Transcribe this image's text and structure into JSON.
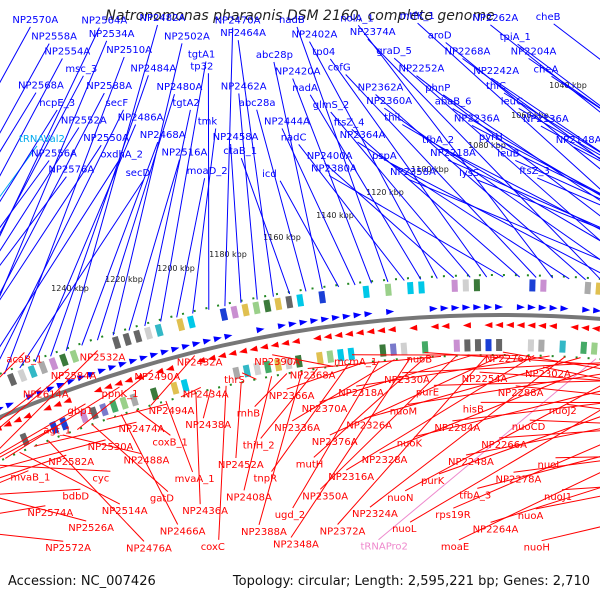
{
  "title": "Natronomonas pharaonis DSM 2160, complete genome",
  "footer": {
    "accession": "Accession: NC_007426",
    "summary": "Topology: circular; Length: 2,595,221 bp; Genes: 2,710"
  },
  "colors": {
    "plus_strand": "#0000ff",
    "minus_strand": "#ff0000",
    "trna": "#00aaee",
    "trna_minus": "#ee88cc",
    "backbone": "#777777",
    "tick_mark": "#228822"
  },
  "ticks": [
    "1040 kbp",
    "1060 kbp",
    "1080 kbp",
    "1100 kbp",
    "1120 kbp",
    "1140 kbp",
    "1160 kbp",
    "1180 kbp",
    "1200 kbp",
    "1220 kbp",
    "1240 kbp"
  ],
  "genes_plus": [
    "NP2570A",
    "tRNAVal2",
    "NP2568A",
    "NP2558A",
    "NP2556A",
    "hcpE_3",
    "NP2554A",
    "NP2576A",
    "NP2552A",
    "msc_3",
    "NP2564A",
    "NP2550A",
    "NP2588A",
    "NP2534A",
    "oxdhA_2",
    "secF",
    "NP2510A",
    "secD",
    "NP2486A",
    "NP2484A",
    "NP2482A",
    "NP2468A",
    "NP2480A",
    "NP2502A",
    "NP2516A",
    "tgtA2",
    "tgtA1",
    "moaD_2",
    "tmk",
    "tp32",
    "NP2470A",
    "NP2458A",
    "NP2462A",
    "NP2464A",
    "ctaB_1",
    "abc28a",
    "abc28p",
    "icd",
    "NP2444A",
    "NP2420A",
    "nadB",
    "nadC",
    "nadA",
    "NP2402A",
    "NP2400A",
    "glmS_2",
    "tp04",
    "NP2380A",
    "ftsZ_4",
    "cofG",
    "nolA_1",
    "NP2364A",
    "NP2362A",
    "NP2374A",
    "pspA",
    "NP2360A",
    "graD_5",
    "NP2358A",
    "thiL",
    "NP2252A",
    "mtfK_1",
    "tfbA_2",
    "phnP",
    "aroD",
    "NP2218A",
    "abaB_6",
    "NP2268A",
    "lysS",
    "NP2236A",
    "NP2242A",
    "NP2262A",
    "pyrH",
    "thiC",
    "tpiA_1",
    "leuB",
    "leuC",
    "NP2204A",
    "ftsZ_3",
    "NP2136A",
    "cheA",
    "cheB",
    "NP2148A"
  ],
  "genes_minus": [
    "acaB_1",
    "mvaB_1",
    "NP2614A",
    "NP2574A",
    "agt_1",
    "NP2572A",
    "NP2582A",
    "NP2584A",
    "bdbD",
    "gbp1",
    "NP2526A",
    "NP2530A",
    "NP2532A",
    "cyc",
    "ppnK_1",
    "NP2514A",
    "NP2474A",
    "NP2476A",
    "NP2488A",
    "NP2490A",
    "gatD",
    "NP2494A",
    "NP2466A",
    "coxB_1",
    "NP2432A",
    "mvaA_1",
    "NP2434A",
    "NP2436A",
    "NP2438A",
    "coxC",
    "NP2452A",
    "thrS",
    "NP2408A",
    "rnhB",
    "NP2388A",
    "thiH_2",
    "NP2390A",
    "tnpR",
    "NP2366A",
    "ugd_2",
    "NP2336A",
    "NP2348A",
    "mutH",
    "NP2368A",
    "NP2350A",
    "NP2370A",
    "NP2372A",
    "NP2376A",
    "mcmA_1",
    "NP2316A",
    "NP2318A",
    "NP2324A",
    "NP2326A",
    "tRNAPro2",
    "NP2328A",
    "NP2330A",
    "nuoN",
    "nuoM",
    "nuoL",
    "nuoK",
    "nuoB",
    "purK",
    "purE",
    "rps19R",
    "NP2284A",
    "moaE",
    "NP2248A",
    "NP2254A",
    "tfbA_3",
    "hisB",
    "NP2264A",
    "NP2266A",
    "NP2276A",
    "NP2278A",
    "NP2288A",
    "nuoA",
    "nuoCD",
    "nuoH",
    "nuoI",
    "NP2302A",
    "nuoJ1",
    "nuoJ2"
  ]
}
